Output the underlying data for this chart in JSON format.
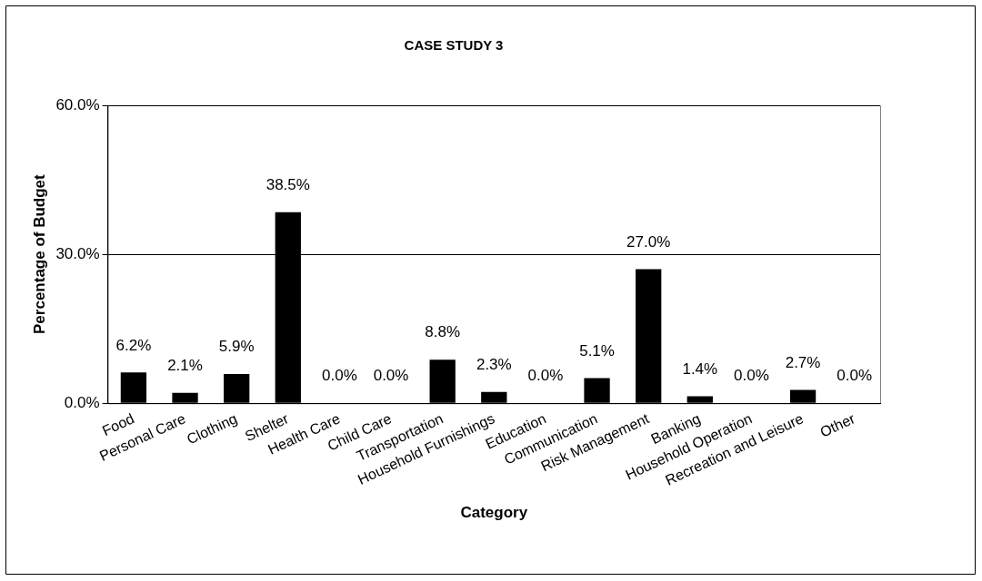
{
  "chart_data": {
    "type": "bar",
    "title": "CASE STUDY 3",
    "xlabel": "Category",
    "ylabel": "Percentage of Budget",
    "categories": [
      "Food",
      "Personal Care",
      "Clothing",
      "Shelter",
      "Health Care",
      "Child Care",
      "Transportation",
      "Household Furnishings",
      "Education",
      "Communication",
      "Risk Management",
      "Banking",
      "Household Operation",
      "Recreation and Leisure",
      "Other"
    ],
    "values": [
      6.2,
      2.1,
      5.9,
      38.5,
      0.0,
      0.0,
      8.8,
      2.3,
      0.0,
      5.1,
      27.0,
      1.4,
      0.0,
      2.7,
      0.0
    ],
    "value_labels": [
      "6.2%",
      "2.1%",
      "5.9%",
      "38.5%",
      "0.0%",
      "0.0%",
      "8.8%",
      "2.3%",
      "0.0%",
      "5.1%",
      "27.0%",
      "1.4%",
      "0.0%",
      "2.7%",
      "0.0%"
    ],
    "color": "#000000",
    "ylim": [
      0,
      60
    ],
    "yticks": [
      {
        "value": 0,
        "label": "0.0%"
      },
      {
        "value": 30,
        "label": "30.0%"
      },
      {
        "value": 60,
        "label": "60.0%"
      }
    ],
    "grid": "y",
    "legend": false
  }
}
